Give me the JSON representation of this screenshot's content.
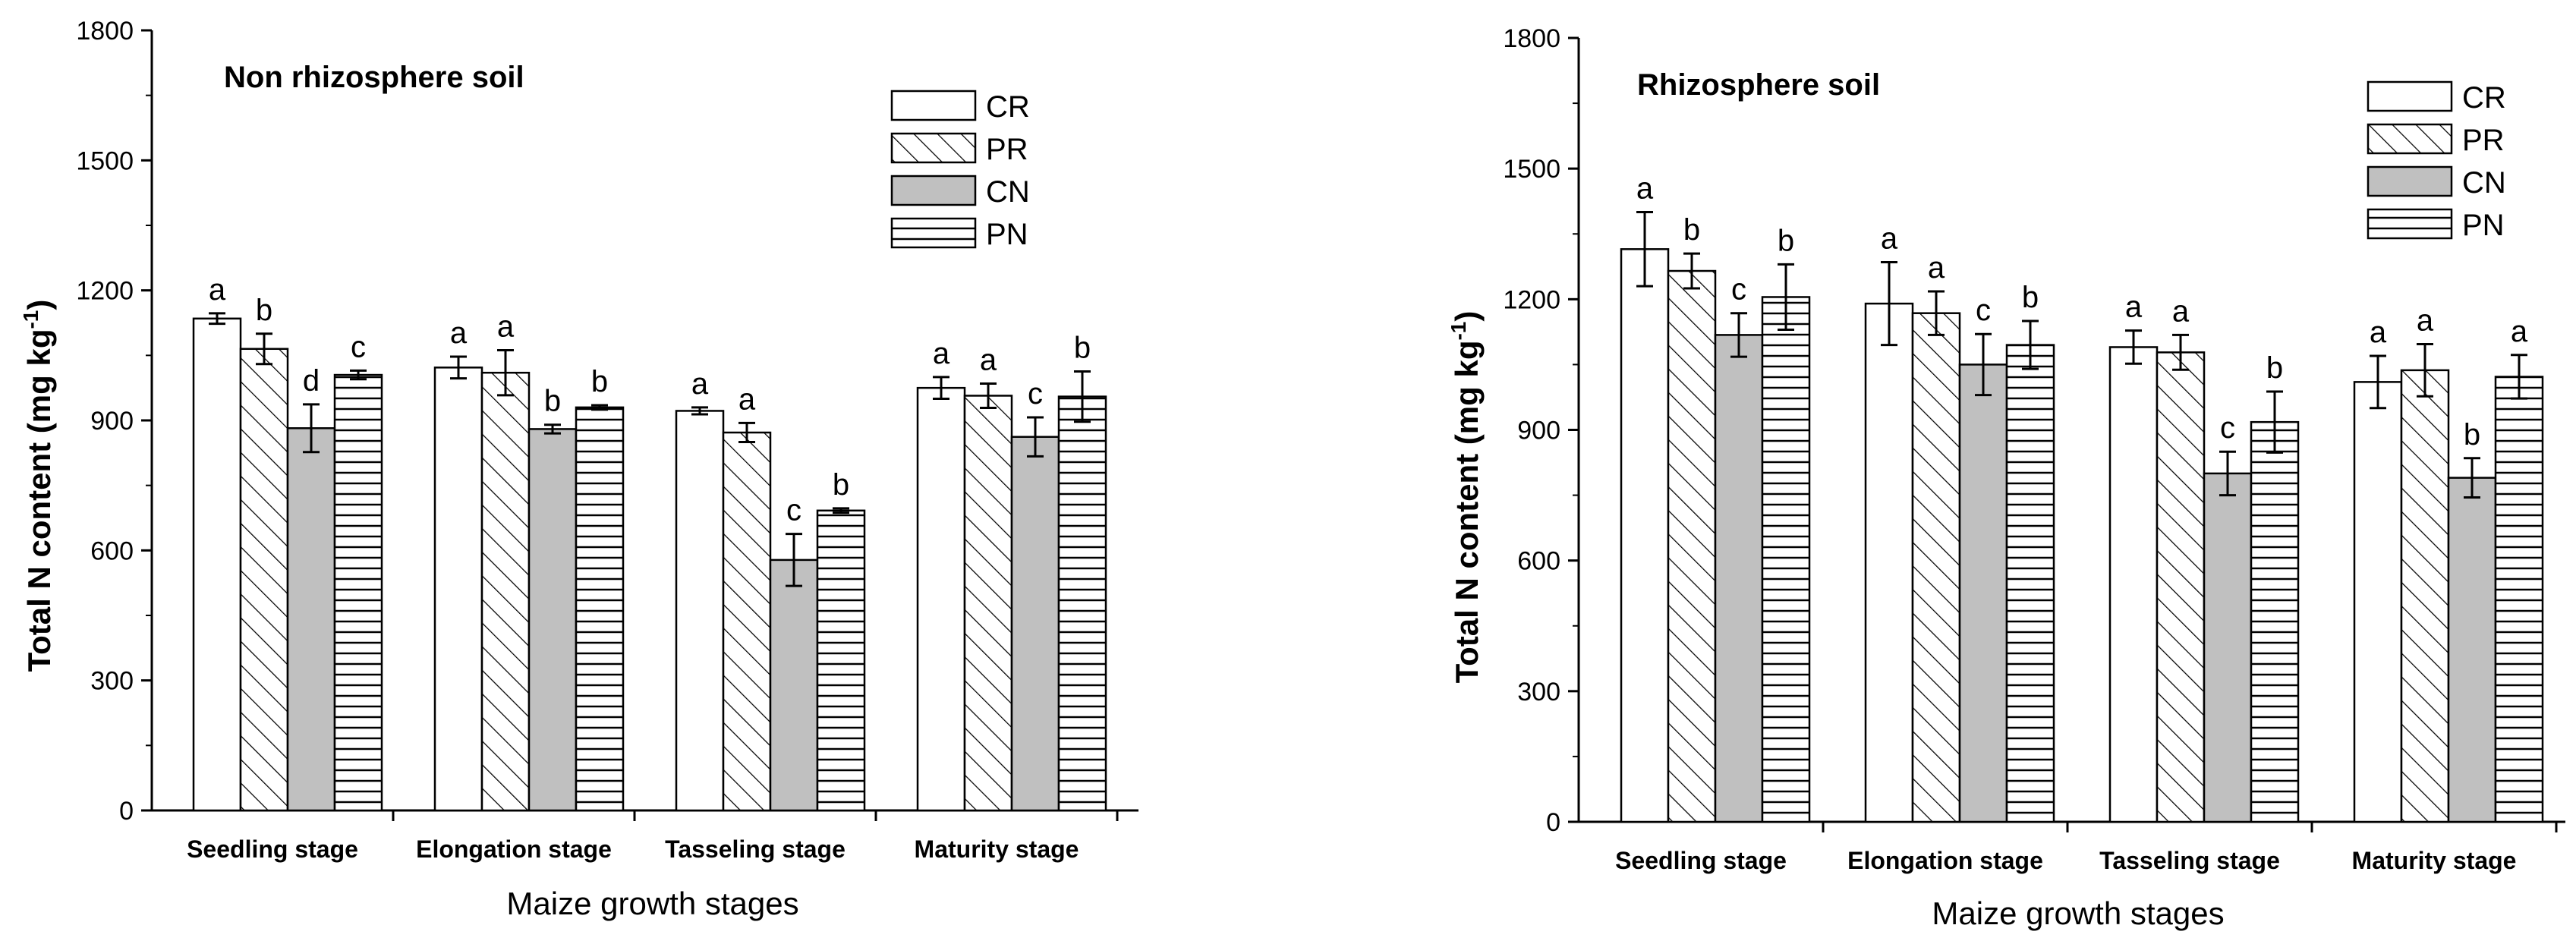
{
  "chart_data": [
    {
      "type": "bar",
      "title": "Non rhizosphere soil",
      "xlabel": "Maize growth stages",
      "ylabel": "Total N content (mg kg-1)",
      "ylabel_main": "Total N content",
      "ylabel_unit": "(mg kg",
      "ylabel_sup": "-1",
      "ylabel_close": ")",
      "ylim": [
        0,
        1800
      ],
      "yticks": [
        0,
        300,
        600,
        900,
        1200,
        1500,
        1800
      ],
      "categories": [
        "Seedling stage",
        "Elongation stage",
        "Tasseling stage",
        "Maturity stage"
      ],
      "series": [
        {
          "name": "CR",
          "values": [
            1135,
            1022,
            922,
            975
          ],
          "errors": [
            12,
            25,
            8,
            25
          ],
          "letters": [
            "a",
            "a",
            "a",
            "a"
          ]
        },
        {
          "name": "PR",
          "values": [
            1065,
            1010,
            872,
            957
          ],
          "errors": [
            35,
            52,
            22,
            28
          ],
          "letters": [
            "b",
            "a",
            "a",
            "a"
          ]
        },
        {
          "name": "CN",
          "values": [
            882,
            880,
            578,
            862
          ],
          "errors": [
            55,
            10,
            60,
            45
          ],
          "letters": [
            "d",
            "b",
            "c",
            "c"
          ]
        },
        {
          "name": "PN",
          "values": [
            1005,
            930,
            692,
            955
          ],
          "errors": [
            10,
            5,
            5,
            58
          ],
          "letters": [
            "c",
            "b",
            "b",
            "b"
          ]
        }
      ],
      "legend": "top-right"
    },
    {
      "type": "bar",
      "title": "Rhizosphere soil",
      "xlabel": "Maize growth stages",
      "ylabel": "Total N content (mg kg-1)",
      "ylabel_main": "Total N content",
      "ylabel_unit": "(mg kg",
      "ylabel_sup": "-1",
      "ylabel_close": ")",
      "ylim": [
        0,
        1800
      ],
      "yticks": [
        0,
        300,
        600,
        900,
        1200,
        1500,
        1800
      ],
      "categories": [
        "Seedling stage",
        "Elongation stage",
        "Tasseling stage",
        "Maturity stage"
      ],
      "series": [
        {
          "name": "CR",
          "values": [
            1315,
            1190,
            1090,
            1010
          ],
          "errors": [
            85,
            95,
            38,
            60
          ],
          "letters": [
            "a",
            "a",
            "a",
            "a"
          ]
        },
        {
          "name": "PR",
          "values": [
            1265,
            1168,
            1078,
            1037
          ],
          "errors": [
            40,
            50,
            40,
            60
          ],
          "letters": [
            "b",
            "a",
            "a",
            "a"
          ]
        },
        {
          "name": "CN",
          "values": [
            1118,
            1050,
            800,
            790
          ],
          "errors": [
            50,
            70,
            50,
            45
          ],
          "letters": [
            "c",
            "c",
            "c",
            "b"
          ]
        },
        {
          "name": "PN",
          "values": [
            1205,
            1095,
            918,
            1022
          ],
          "errors": [
            75,
            55,
            70,
            50
          ],
          "letters": [
            "b",
            "b",
            "b",
            "a"
          ]
        }
      ],
      "legend": "top-right"
    }
  ]
}
